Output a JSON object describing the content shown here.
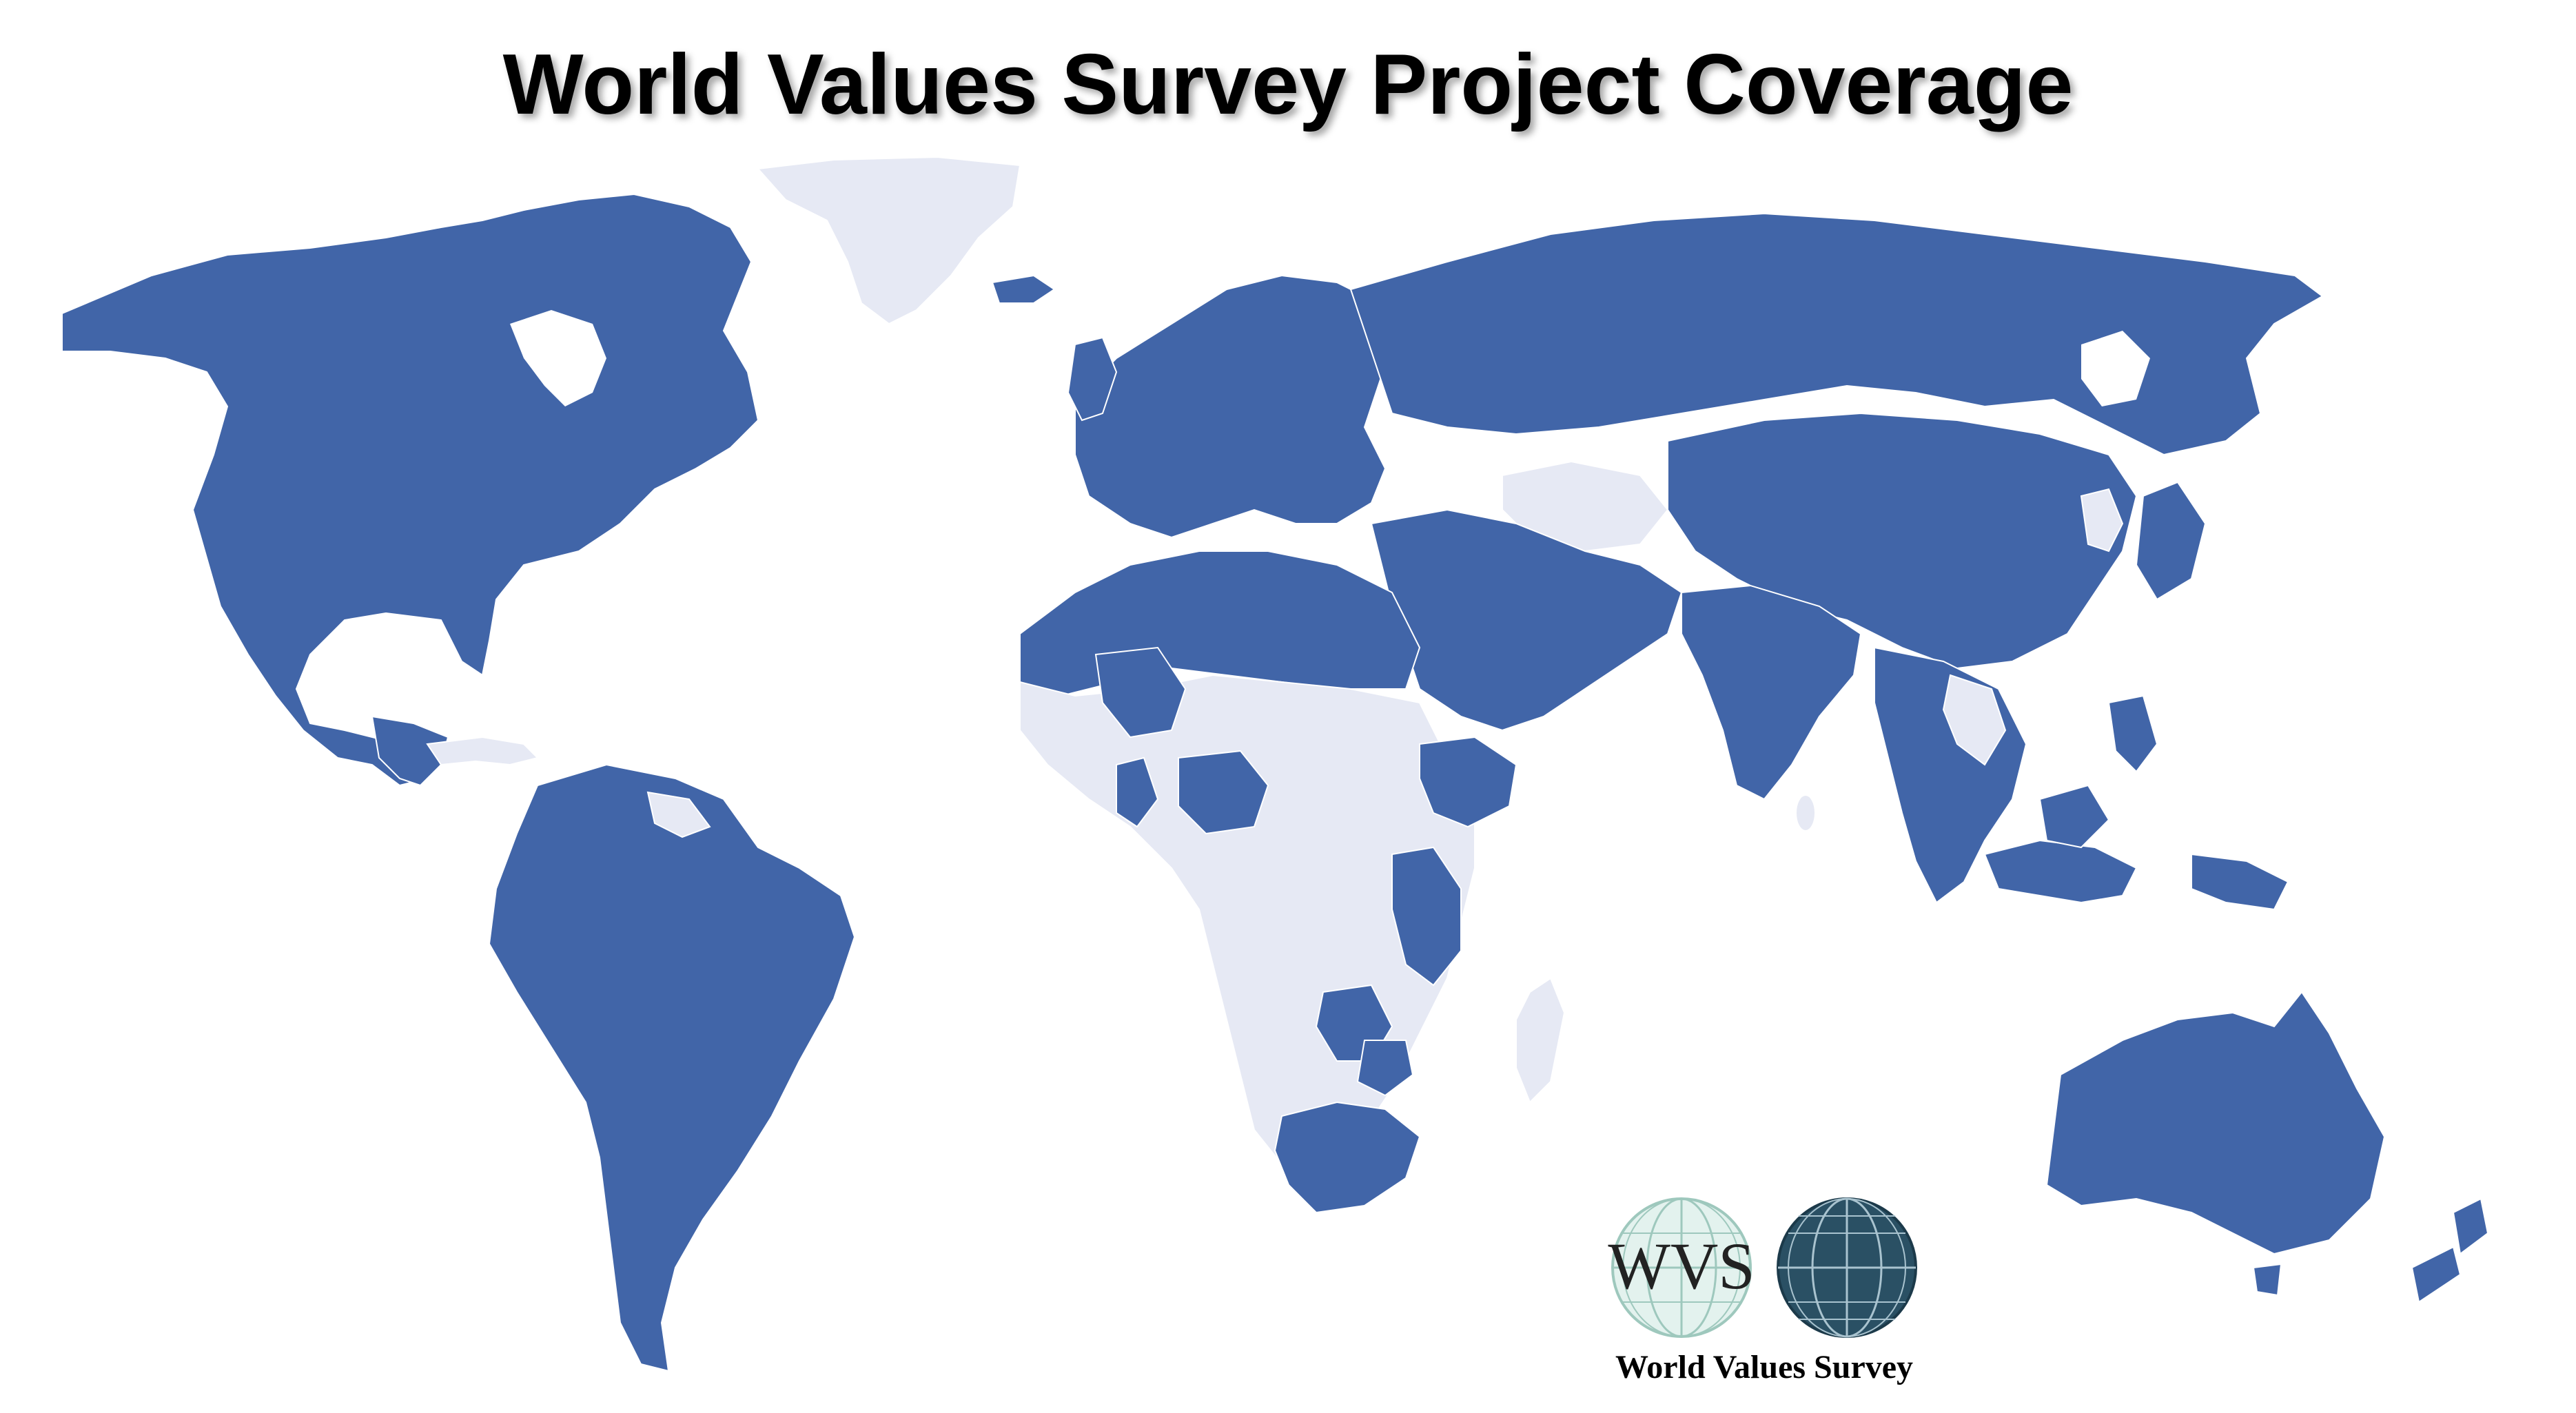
{
  "title": "World Values Survey Project Coverage",
  "legend_colors": {
    "covered": "#4165a8",
    "not_covered": "#e6e9f4",
    "ocean": "#ffffff"
  },
  "logo": {
    "letters": "WVS",
    "caption": "World Values Survey",
    "globe_left": "light-teal-globe-icon",
    "globe_right": "dark-globe-icon"
  }
}
